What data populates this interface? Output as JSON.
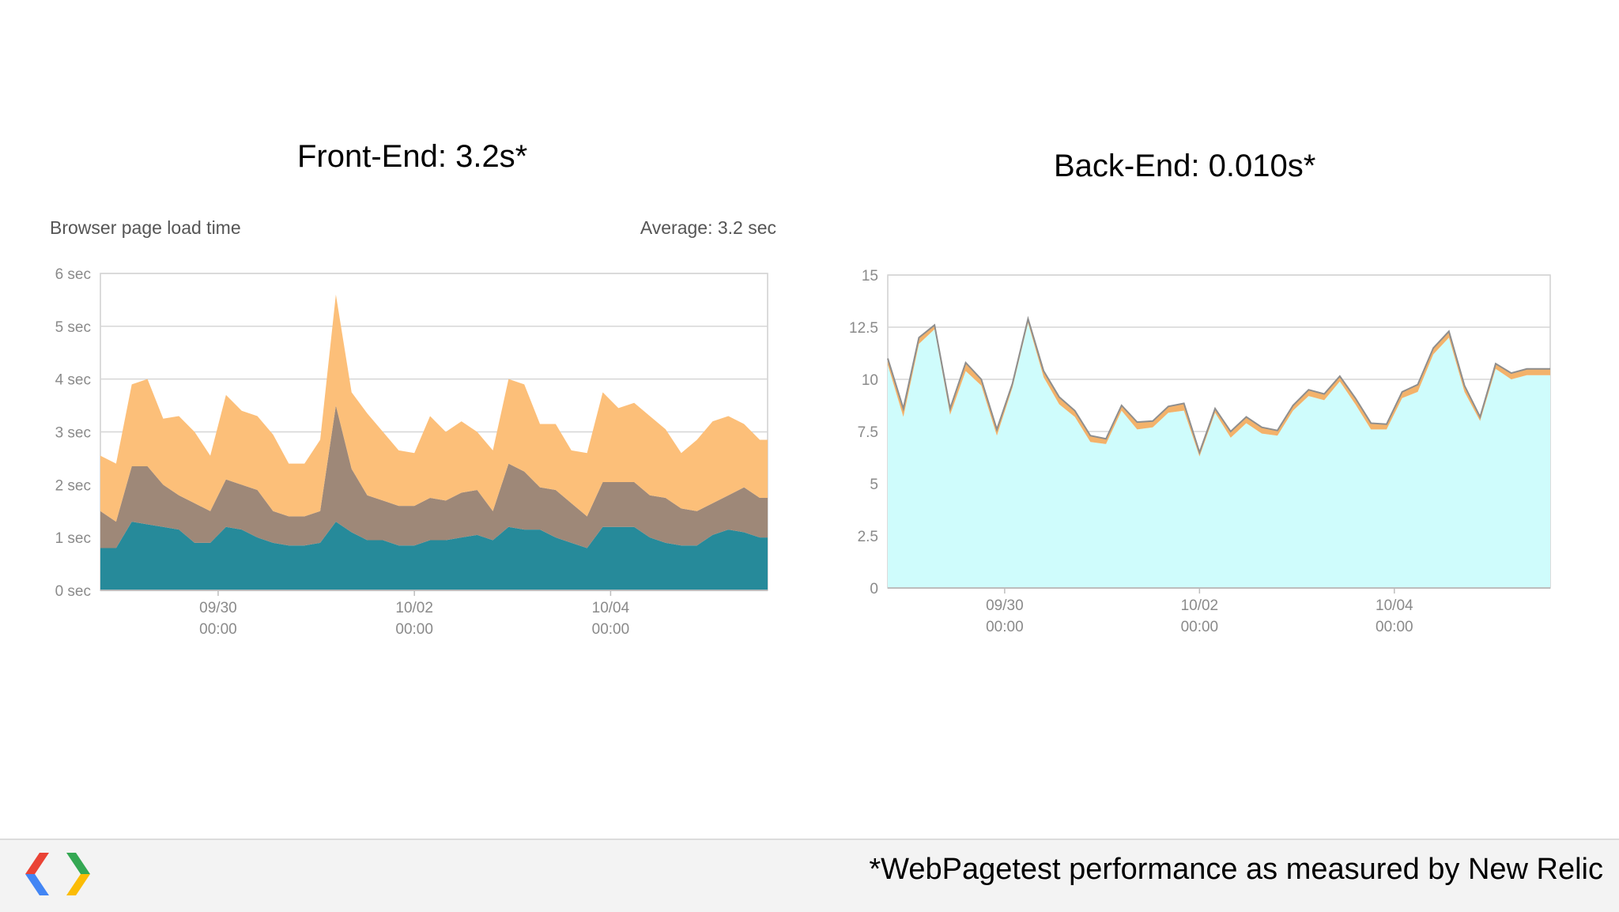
{
  "slide": {
    "front_title": "Front-End: 3.2s*",
    "back_title": "Back-End: 0.010s*",
    "footnote": "*WebPagetest performance as measured by New Relic"
  },
  "colors": {
    "fe_top": "#fcbf79",
    "fe_mid": "#9e8878",
    "fe_bottom": "#268a9a",
    "be_fill": "#cffcfc",
    "be_band": "#f3b26a",
    "be_line": "#8e8e8e",
    "grid": "#d6d6d6"
  },
  "chart_data": [
    {
      "type": "area",
      "stacked": true,
      "title": "Browser page load time",
      "annotation": "Average: 3.2 sec",
      "yticks": [
        "0 sec",
        "1 sec",
        "2 sec",
        "3 sec",
        "4 sec",
        "5 sec",
        "6 sec"
      ],
      "ylim": [
        0,
        6
      ],
      "xticks": [
        {
          "x": 6.0,
          "line1": "09/30",
          "line2": "00:00"
        },
        {
          "x": 16.0,
          "line1": "10/02",
          "line2": "00:00"
        },
        {
          "x": 26.0,
          "line1": "10/04",
          "line2": "00:00"
        }
      ],
      "xlim": [
        0,
        34
      ],
      "x": [
        0,
        0.8,
        1.6,
        2.4,
        3.2,
        4.0,
        4.8,
        5.6,
        6.4,
        7.2,
        8.0,
        8.8,
        9.6,
        10.4,
        11.2,
        12.0,
        12.8,
        13.6,
        14.4,
        15.2,
        16.0,
        16.8,
        17.6,
        18.4,
        19.2,
        20.0,
        20.8,
        21.6,
        22.4,
        23.2,
        24.0,
        24.8,
        25.6,
        26.4,
        27.2,
        28.0,
        28.8,
        29.6,
        30.4,
        31.2,
        32.0,
        32.8,
        33.6,
        34.0
      ],
      "series": [
        {
          "color_key": "fe_bottom",
          "values": [
            0.8,
            0.8,
            1.3,
            1.25,
            1.2,
            1.15,
            0.9,
            0.9,
            1.2,
            1.15,
            1.0,
            0.9,
            0.85,
            0.85,
            0.9,
            1.3,
            1.1,
            0.95,
            0.95,
            0.85,
            0.85,
            0.95,
            0.95,
            1.0,
            1.05,
            0.95,
            1.2,
            1.15,
            1.15,
            1.0,
            0.9,
            0.8,
            1.2,
            1.2,
            1.2,
            1.0,
            0.9,
            0.85,
            0.85,
            1.05,
            1.15,
            1.1,
            1.0,
            1.0
          ]
        },
        {
          "color_key": "fe_mid",
          "values": [
            0.7,
            0.5,
            1.05,
            1.1,
            0.8,
            0.65,
            0.75,
            0.6,
            0.9,
            0.85,
            0.9,
            0.6,
            0.55,
            0.55,
            0.6,
            2.2,
            1.2,
            0.85,
            0.75,
            0.75,
            0.75,
            0.8,
            0.75,
            0.85,
            0.85,
            0.55,
            1.2,
            1.1,
            0.8,
            0.9,
            0.75,
            0.6,
            0.85,
            0.85,
            0.85,
            0.8,
            0.85,
            0.7,
            0.65,
            0.6,
            0.65,
            0.85,
            0.75,
            0.75
          ]
        },
        {
          "color_key": "fe_top",
          "values": [
            1.05,
            1.1,
            1.55,
            1.65,
            1.25,
            1.5,
            1.35,
            1.05,
            1.6,
            1.4,
            1.4,
            1.45,
            1.0,
            1.0,
            1.35,
            2.1,
            1.45,
            1.55,
            1.3,
            1.05,
            1.0,
            1.55,
            1.3,
            1.35,
            1.1,
            1.15,
            1.6,
            1.65,
            1.2,
            1.25,
            1.0,
            1.2,
            1.7,
            1.4,
            1.5,
            1.5,
            1.3,
            1.05,
            1.35,
            1.55,
            1.5,
            1.2,
            1.1,
            1.1
          ]
        }
      ]
    },
    {
      "type": "area",
      "yticks": [
        "0",
        "2.5",
        "5",
        "7.5",
        "10",
        "12.5",
        "15"
      ],
      "ylim": [
        0,
        15
      ],
      "xticks": [
        {
          "x": 6.0,
          "line1": "09/30",
          "line2": "00:00"
        },
        {
          "x": 16.0,
          "line1": "10/02",
          "line2": "00:00"
        },
        {
          "x": 26.0,
          "line1": "10/04",
          "line2": "00:00"
        }
      ],
      "xlim": [
        0,
        34
      ],
      "x": [
        0,
        0.8,
        1.6,
        2.4,
        3.2,
        4.0,
        4.8,
        5.6,
        6.4,
        7.2,
        8.0,
        8.8,
        9.6,
        10.4,
        11.2,
        12.0,
        12.8,
        13.6,
        14.4,
        15.2,
        16.0,
        16.8,
        17.6,
        18.4,
        19.2,
        20.0,
        20.8,
        21.6,
        22.4,
        23.2,
        24.0,
        24.8,
        25.6,
        26.4,
        27.2,
        28.0,
        28.8,
        29.6,
        30.4,
        31.2,
        32.0,
        32.8,
        33.6,
        34.0
      ],
      "series": [
        {
          "color_key": "be_fill",
          "values": [
            10.7,
            8.2,
            11.7,
            12.4,
            8.3,
            10.4,
            9.7,
            7.3,
            9.6,
            12.7,
            10.1,
            8.8,
            8.2,
            7.0,
            6.9,
            8.5,
            7.6,
            7.7,
            8.4,
            8.5,
            6.3,
            8.4,
            7.2,
            7.9,
            7.4,
            7.3,
            8.5,
            9.2,
            9.0,
            9.9,
            8.8,
            7.6,
            7.6,
            9.1,
            9.4,
            11.2,
            12.0,
            9.4,
            8.0,
            10.5,
            10.0,
            10.2,
            10.2,
            10.2
          ]
        },
        {
          "color_key": "be_band",
          "values": [
            0.3,
            0.4,
            0.3,
            0.2,
            0.3,
            0.4,
            0.3,
            0.3,
            0.2,
            0.2,
            0.3,
            0.35,
            0.3,
            0.3,
            0.25,
            0.25,
            0.35,
            0.3,
            0.3,
            0.35,
            0.2,
            0.2,
            0.3,
            0.3,
            0.3,
            0.25,
            0.25,
            0.3,
            0.3,
            0.25,
            0.3,
            0.3,
            0.25,
            0.3,
            0.35,
            0.3,
            0.3,
            0.3,
            0.2,
            0.25,
            0.3,
            0.3,
            0.3,
            0.3
          ]
        }
      ]
    }
  ]
}
